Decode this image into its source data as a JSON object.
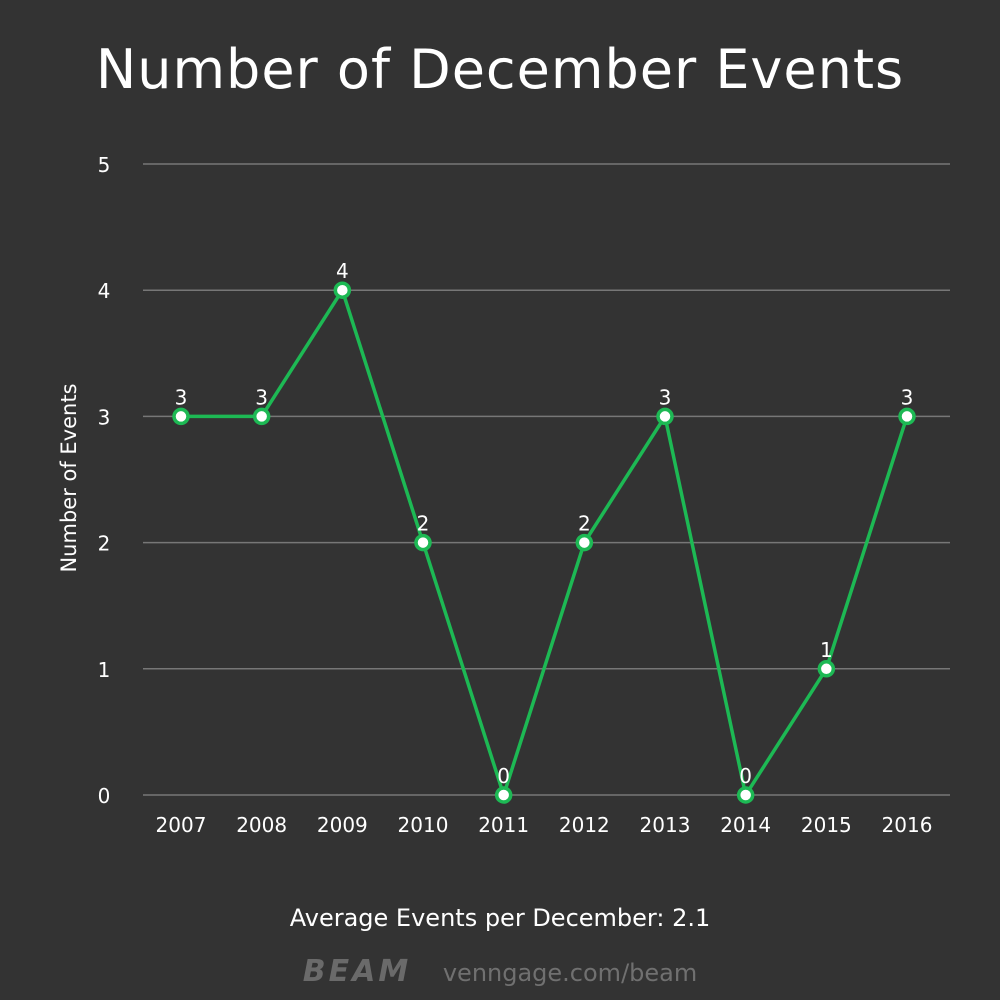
{
  "page": {
    "background": "#333333"
  },
  "chart_data": {
    "type": "line",
    "title": "Number of December Events",
    "xlabel": "",
    "ylabel": "Number of Events",
    "categories": [
      "2007",
      "2008",
      "2009",
      "2010",
      "2011",
      "2012",
      "2013",
      "2014",
      "2015",
      "2016"
    ],
    "series": [
      {
        "values": [
          3,
          3,
          4,
          2,
          0,
          2,
          3,
          0,
          1,
          3
        ],
        "color": "#1db954"
      }
    ],
    "data_labels": [
      "3",
      "3",
      "4",
      "2",
      "0",
      "2",
      "3",
      "0",
      "1",
      "3"
    ],
    "ylim": [
      0,
      5
    ],
    "yticks": [
      "0",
      "1",
      "2",
      "3",
      "4",
      "5"
    ],
    "grid": true,
    "legend": "none",
    "colors": {
      "line": "#1db954",
      "marker_fill": "#ffffff",
      "gridline": "#777777",
      "text": "#ffffff"
    }
  },
  "footer": {
    "note": "Average Events per December: 2.1",
    "brand_logo": "BEAM",
    "brand_url": "venngage.com/beam"
  }
}
